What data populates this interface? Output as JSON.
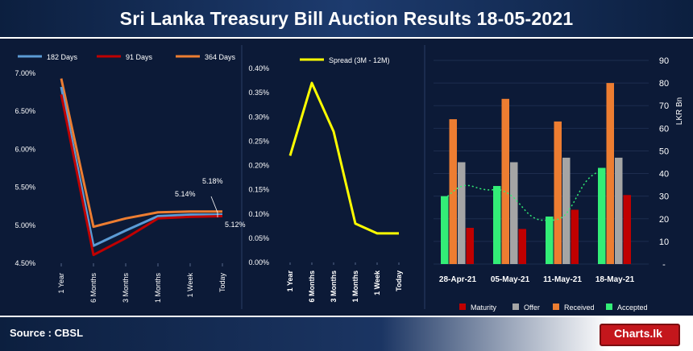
{
  "title": "Sri Lanka Treasury Bill Auction Results  18-05-2021",
  "footer": {
    "source": "Source : CBSL",
    "logo_text": "Charts.lk"
  },
  "colors": {
    "d182": "#5b9bd5",
    "d91": "#c00000",
    "d364": "#ed7d31",
    "spread": "#ffff00",
    "maturity": "#c00000",
    "offer": "#a5a5a5",
    "received": "#ed7d31",
    "accepted": "#33ee77"
  },
  "chart_data": [
    {
      "type": "line",
      "title": "",
      "categories": [
        "1 Year",
        "6 Months",
        "3 Months",
        "1 Months",
        "1 Week",
        "Today"
      ],
      "series": [
        {
          "name": "182 Days",
          "values": [
            6.82,
            4.73,
            4.93,
            5.12,
            5.14,
            5.14
          ]
        },
        {
          "name": "91 Days",
          "values": [
            6.72,
            4.61,
            4.83,
            5.09,
            5.11,
            5.12
          ]
        },
        {
          "name": "364 Days",
          "values": [
            6.93,
            4.98,
            5.09,
            5.17,
            5.18,
            5.18
          ]
        }
      ],
      "yticks": [
        "7.00%",
        "6.50%",
        "6.00%",
        "5.50%",
        "5.00%",
        "4.50%"
      ],
      "ylim": [
        4.5,
        7.0
      ],
      "annotations": [
        "5.18%",
        "5.14%",
        "5.12%"
      ]
    },
    {
      "type": "line",
      "title": "",
      "categories": [
        "1 Year",
        "6 Months",
        "3 Months",
        "1 Months",
        "1 Week",
        "Today"
      ],
      "series": [
        {
          "name": "Spread (3M - 12M)",
          "values": [
            0.22,
            0.37,
            0.27,
            0.08,
            0.06,
            0.06
          ]
        }
      ],
      "yticks": [
        "0.40%",
        "0.35%",
        "0.30%",
        "0.25%",
        "0.20%",
        "0.15%",
        "0.10%",
        "0.05%",
        "0.00%"
      ],
      "ylim": [
        0,
        0.4
      ]
    },
    {
      "type": "bar",
      "title": "",
      "ylabel": "LKR Bn",
      "categories": [
        "28-Apr-21",
        "05-May-21",
        "11-May-21",
        "18-May-21"
      ],
      "series": [
        {
          "name": "Maturity",
          "values": [
            16,
            15.5,
            24,
            30.5
          ]
        },
        {
          "name": "Offer",
          "values": [
            45,
            45,
            47,
            47
          ]
        },
        {
          "name": "Received",
          "values": [
            64,
            73,
            63,
            80
          ]
        },
        {
          "name": "Accepted",
          "values": [
            30,
            34.5,
            21,
            42.5
          ]
        }
      ],
      "trendline": "Accepted (dotted, polynomial)",
      "yticks": [
        "90",
        "80",
        "70",
        "60",
        "50",
        "40",
        "30",
        "20",
        "10",
        "-"
      ],
      "ylim": [
        0,
        90
      ]
    }
  ]
}
